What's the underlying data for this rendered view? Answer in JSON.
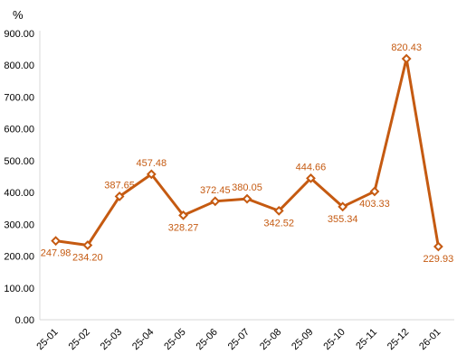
{
  "chart_data": {
    "type": "line",
    "ylabel": "%",
    "ylim": [
      0,
      900
    ],
    "yticks": [
      "0.00",
      "100.00",
      "200.00",
      "300.00",
      "400.00",
      "500.00",
      "600.00",
      "700.00",
      "800.00",
      "900.00"
    ],
    "categories": [
      "25-01",
      "25-02",
      "25-03",
      "25-04",
      "25-05",
      "25-06",
      "25-07",
      "25-08",
      "25-09",
      "25-10",
      "25-11",
      "25-12",
      "26-01"
    ],
    "series": [
      {
        "values": [
          247.98,
          234.2,
          387.65,
          457.48,
          328.27,
          372.45,
          380.05,
          342.52,
          444.66,
          355.34,
          403.33,
          820.43,
          229.93
        ],
        "labels": [
          "247.98",
          "234.20",
          "387.65",
          "457.48",
          "328.27",
          "372.45",
          "380.05",
          "342.52",
          "444.66",
          "355.34",
          "403.33",
          "820.43",
          "229.93"
        ]
      }
    ],
    "grid": false,
    "legend": "none",
    "colors": {
      "line": "#C55A11",
      "label": "#C55A11",
      "axis": "#D9D9D9",
      "text": "#000000"
    }
  }
}
